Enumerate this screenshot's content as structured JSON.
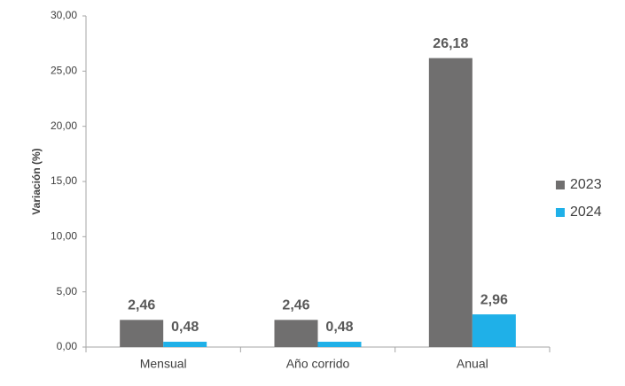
{
  "chart_data": {
    "type": "bar",
    "y_label": "Variación (%)",
    "categories": [
      "Mensual",
      "Año corrido",
      "Anual"
    ],
    "series": [
      {
        "name": "2023",
        "color": "#706f6f",
        "values": [
          2.46,
          2.46,
          26.18
        ],
        "value_labels": [
          "2,46",
          "2,46",
          "26,18"
        ]
      },
      {
        "name": "2024",
        "color": "#1fb0e8",
        "values": [
          0.48,
          0.48,
          2.96
        ],
        "value_labels": [
          "0,48",
          "0,48",
          "2,96"
        ]
      }
    ],
    "ylim": [
      0,
      30
    ],
    "yticks": [
      {
        "value": 0,
        "label": "0,00"
      },
      {
        "value": 5,
        "label": "5,00"
      },
      {
        "value": 10,
        "label": "10,00"
      },
      {
        "value": 15,
        "label": "15,00"
      },
      {
        "value": 20,
        "label": "20,00"
      },
      {
        "value": 25,
        "label": "25,00"
      },
      {
        "value": 30,
        "label": "30,00"
      }
    ],
    "grid": false,
    "legend": "right"
  }
}
